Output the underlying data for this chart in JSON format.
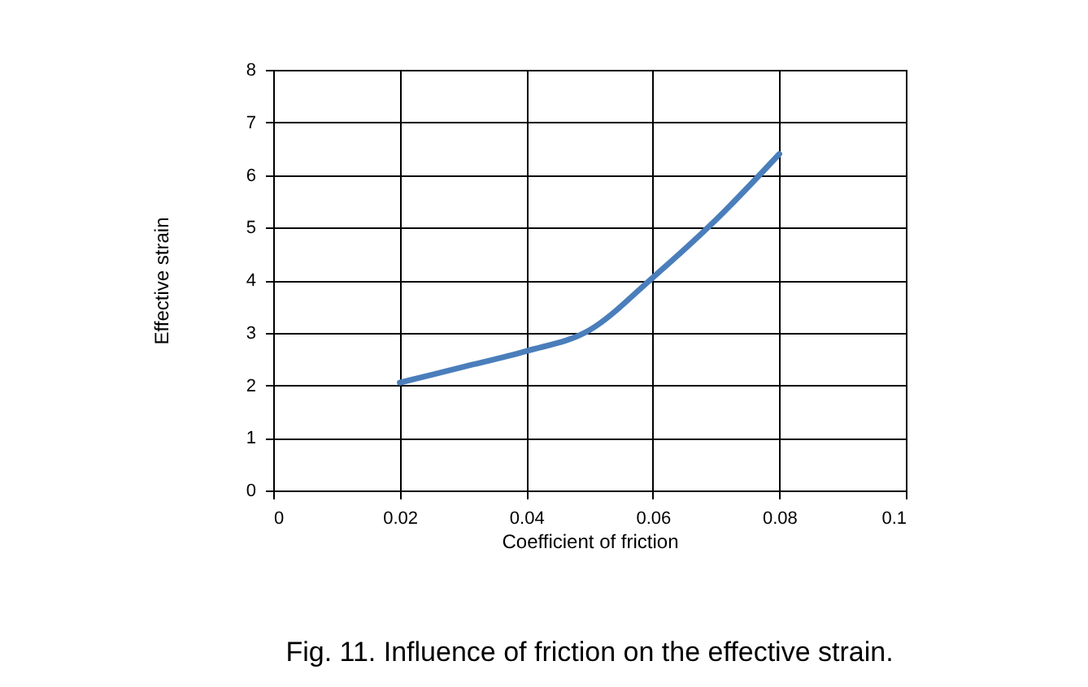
{
  "chart_data": {
    "type": "line",
    "xlabel": "Coefficient of friction",
    "ylabel": "Effective strain",
    "x": [
      0.02,
      0.03,
      0.04,
      0.05,
      0.06,
      0.07,
      0.08
    ],
    "series": [
      {
        "color": "#4a7ebb",
        "values": [
          2.05,
          2.35,
          2.65,
          3.05,
          4.05,
          5.15,
          6.4
        ]
      }
    ],
    "xlim": [
      0,
      0.1
    ],
    "xticks": [
      0,
      0.02,
      0.04,
      0.06,
      0.08,
      0.1
    ],
    "ylim": [
      0,
      8
    ],
    "yticks": [
      0,
      1,
      2,
      3,
      4,
      5,
      6,
      7,
      8
    ],
    "grid": true,
    "marker": "none",
    "line_style": "solid",
    "annotations": [
      "Fig. 11. Influence of friction on the effective strain."
    ]
  }
}
